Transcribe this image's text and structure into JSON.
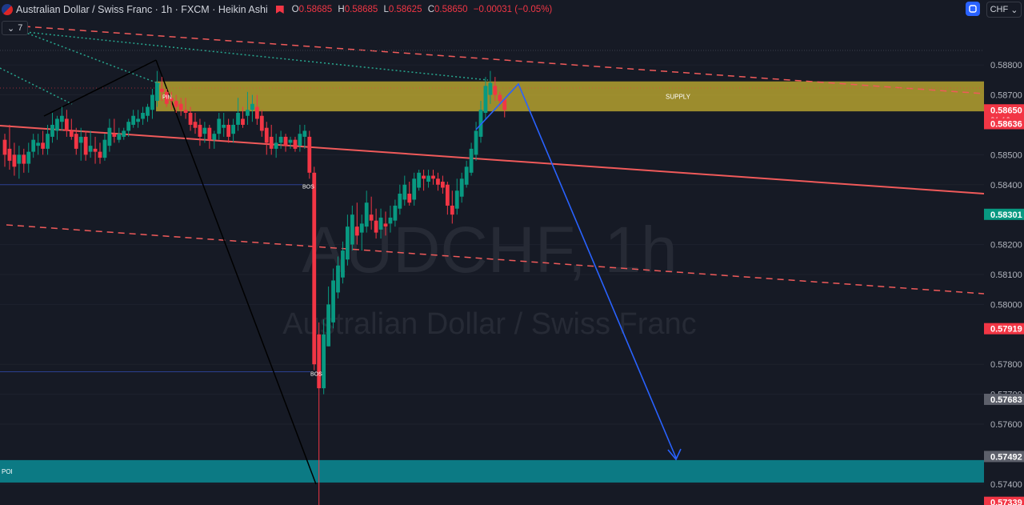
{
  "header": {
    "title": "Australian Dollar / Swiss Franc · 1h · FXCM · Heikin Ashi",
    "o_label": "O",
    "o": "0.58685",
    "h_label": "H",
    "h": "0.58685",
    "l_label": "L",
    "l": "0.58625",
    "c_label": "C",
    "c": "0.58650",
    "change": "−0.00031 (−0.05%)",
    "indicator_count": "7",
    "currency": "CHF"
  },
  "watermark": {
    "symbol": "AUDCHF, 1h",
    "name": "Australian Dollar / Swiss Franc"
  },
  "colors": {
    "up": "#089981",
    "down": "#f23645",
    "supply_zone": "#c9b330",
    "poi_zone": "#0a8c95",
    "projection": "#2962ff"
  },
  "chart_data": {
    "type": "candlestick",
    "symbol": "AUDCHF",
    "timeframe": "1h",
    "ylim": [
      0.5733,
      0.5891
    ],
    "y_ticks": [
      "0.58800",
      "0.58700",
      "0.58500",
      "0.58400",
      "0.58200",
      "0.58100",
      "0.58000",
      "0.57800",
      "0.57700",
      "0.57600",
      "0.57400"
    ],
    "price_labels": [
      {
        "value": "0.58650",
        "sub": "21:19",
        "color": "#f23645",
        "price": 0.5865
      },
      {
        "value": "0.58636",
        "color": "#f23645",
        "price": 0.58604
      },
      {
        "value": "0.58301",
        "color": "#089981",
        "price": 0.58301
      },
      {
        "value": "0.57919",
        "color": "#f23645",
        "price": 0.57919
      },
      {
        "value": "0.57683",
        "color": "#5d606b",
        "price": 0.57683
      },
      {
        "value": "0.57492",
        "color": "#5d606b",
        "price": 0.57492
      },
      {
        "value": "0.57339",
        "color": "#f23645",
        "price": 0.57339
      }
    ],
    "zones": [
      {
        "name": "SUPPLY",
        "top": 0.58745,
        "bottom": 0.58645
      },
      {
        "name": "POI",
        "top": 0.5748,
        "bottom": 0.57405
      }
    ],
    "labels": [
      {
        "text": "PIN",
        "x": 203,
        "price": 0.58695
      },
      {
        "text": "BOS",
        "x": 378,
        "price": 0.58395
      },
      {
        "text": "BOS",
        "x": 388,
        "price": 0.5777
      }
    ],
    "candles": [
      {
        "o": 0.5855,
        "h": 0.5857,
        "l": 0.5846,
        "c": 0.585
      },
      {
        "o": 0.5852,
        "h": 0.586,
        "l": 0.5845,
        "c": 0.5848
      },
      {
        "o": 0.585,
        "h": 0.5854,
        "l": 0.5843,
        "c": 0.5846
      },
      {
        "o": 0.5847,
        "h": 0.5853,
        "l": 0.5842,
        "c": 0.585
      },
      {
        "o": 0.585,
        "h": 0.5852,
        "l": 0.5844,
        "c": 0.5847
      },
      {
        "o": 0.5847,
        "h": 0.5854,
        "l": 0.5844,
        "c": 0.5851
      },
      {
        "o": 0.5851,
        "h": 0.5857,
        "l": 0.5849,
        "c": 0.5855
      },
      {
        "o": 0.5853,
        "h": 0.5857,
        "l": 0.585,
        "c": 0.5854
      },
      {
        "o": 0.5854,
        "h": 0.5858,
        "l": 0.585,
        "c": 0.5852
      },
      {
        "o": 0.5852,
        "h": 0.586,
        "l": 0.585,
        "c": 0.5857
      },
      {
        "o": 0.5856,
        "h": 0.5864,
        "l": 0.5854,
        "c": 0.586
      },
      {
        "o": 0.5858,
        "h": 0.5863,
        "l": 0.5855,
        "c": 0.5862
      },
      {
        "o": 0.5861,
        "h": 0.5866,
        "l": 0.5858,
        "c": 0.5863
      },
      {
        "o": 0.5862,
        "h": 0.5865,
        "l": 0.5856,
        "c": 0.5858
      },
      {
        "o": 0.5858,
        "h": 0.5862,
        "l": 0.5855,
        "c": 0.5856
      },
      {
        "o": 0.5857,
        "h": 0.5859,
        "l": 0.585,
        "c": 0.5852
      },
      {
        "o": 0.5854,
        "h": 0.5859,
        "l": 0.5848,
        "c": 0.5856
      },
      {
        "o": 0.5856,
        "h": 0.5858,
        "l": 0.5848,
        "c": 0.585
      },
      {
        "o": 0.5851,
        "h": 0.5858,
        "l": 0.5849,
        "c": 0.5853
      },
      {
        "o": 0.5852,
        "h": 0.5856,
        "l": 0.5847,
        "c": 0.5851
      },
      {
        "o": 0.5851,
        "h": 0.5854,
        "l": 0.5847,
        "c": 0.5849
      },
      {
        "o": 0.5849,
        "h": 0.5857,
        "l": 0.5848,
        "c": 0.5855
      },
      {
        "o": 0.5853,
        "h": 0.5862,
        "l": 0.5851,
        "c": 0.5859
      },
      {
        "o": 0.5857,
        "h": 0.5862,
        "l": 0.5854,
        "c": 0.5856
      },
      {
        "o": 0.5855,
        "h": 0.5859,
        "l": 0.5854,
        "c": 0.5857
      },
      {
        "o": 0.5856,
        "h": 0.5859,
        "l": 0.5855,
        "c": 0.5858
      },
      {
        "o": 0.5858,
        "h": 0.5862,
        "l": 0.5856,
        "c": 0.5861
      },
      {
        "o": 0.586,
        "h": 0.5865,
        "l": 0.5859,
        "c": 0.5863
      },
      {
        "o": 0.5861,
        "h": 0.5865,
        "l": 0.5859,
        "c": 0.5862
      },
      {
        "o": 0.5862,
        "h": 0.5866,
        "l": 0.586,
        "c": 0.5864
      },
      {
        "o": 0.5863,
        "h": 0.5867,
        "l": 0.5861,
        "c": 0.5866
      },
      {
        "o": 0.5865,
        "h": 0.5872,
        "l": 0.5862,
        "c": 0.587
      },
      {
        "o": 0.5868,
        "h": 0.5878,
        "l": 0.5866,
        "c": 0.5874
      },
      {
        "o": 0.5872,
        "h": 0.5876,
        "l": 0.5868,
        "c": 0.5871
      },
      {
        "o": 0.5871,
        "h": 0.5872,
        "l": 0.5866,
        "c": 0.5867
      },
      {
        "o": 0.5869,
        "h": 0.5871,
        "l": 0.5865,
        "c": 0.5868
      },
      {
        "o": 0.5868,
        "h": 0.587,
        "l": 0.5864,
        "c": 0.5866
      },
      {
        "o": 0.5867,
        "h": 0.5869,
        "l": 0.5863,
        "c": 0.5865
      },
      {
        "o": 0.5865,
        "h": 0.5869,
        "l": 0.5862,
        "c": 0.5864
      },
      {
        "o": 0.5864,
        "h": 0.5866,
        "l": 0.5858,
        "c": 0.586
      },
      {
        "o": 0.5861,
        "h": 0.5864,
        "l": 0.5857,
        "c": 0.5859
      },
      {
        "o": 0.586,
        "h": 0.5862,
        "l": 0.5853,
        "c": 0.5856
      },
      {
        "o": 0.5857,
        "h": 0.5861,
        "l": 0.5854,
        "c": 0.5859
      },
      {
        "o": 0.5859,
        "h": 0.586,
        "l": 0.5852,
        "c": 0.5855
      },
      {
        "o": 0.5855,
        "h": 0.5858,
        "l": 0.5852,
        "c": 0.5857
      },
      {
        "o": 0.5857,
        "h": 0.5864,
        "l": 0.5855,
        "c": 0.5862
      },
      {
        "o": 0.5859,
        "h": 0.5864,
        "l": 0.5856,
        "c": 0.586
      },
      {
        "o": 0.586,
        "h": 0.5862,
        "l": 0.5854,
        "c": 0.5856
      },
      {
        "o": 0.5857,
        "h": 0.5862,
        "l": 0.5854,
        "c": 0.586
      },
      {
        "o": 0.586,
        "h": 0.5869,
        "l": 0.5858,
        "c": 0.5864
      },
      {
        "o": 0.5862,
        "h": 0.5866,
        "l": 0.5859,
        "c": 0.586
      },
      {
        "o": 0.5863,
        "h": 0.5871,
        "l": 0.586,
        "c": 0.5865
      },
      {
        "o": 0.5865,
        "h": 0.587,
        "l": 0.5861,
        "c": 0.5867
      },
      {
        "o": 0.5866,
        "h": 0.587,
        "l": 0.586,
        "c": 0.5862
      },
      {
        "o": 0.5863,
        "h": 0.5865,
        "l": 0.5856,
        "c": 0.5858
      },
      {
        "o": 0.5859,
        "h": 0.5861,
        "l": 0.585,
        "c": 0.5854
      },
      {
        "o": 0.5856,
        "h": 0.586,
        "l": 0.585,
        "c": 0.5852
      },
      {
        "o": 0.5852,
        "h": 0.5857,
        "l": 0.5849,
        "c": 0.5854
      },
      {
        "o": 0.5854,
        "h": 0.5858,
        "l": 0.5852,
        "c": 0.5856
      },
      {
        "o": 0.5856,
        "h": 0.5857,
        "l": 0.5851,
        "c": 0.5853
      },
      {
        "o": 0.5854,
        "h": 0.5856,
        "l": 0.5852,
        "c": 0.5855
      },
      {
        "o": 0.5855,
        "h": 0.5856,
        "l": 0.5851,
        "c": 0.5852
      },
      {
        "o": 0.5853,
        "h": 0.586,
        "l": 0.5851,
        "c": 0.5857
      },
      {
        "o": 0.5856,
        "h": 0.586,
        "l": 0.5852,
        "c": 0.5858
      },
      {
        "o": 0.5856,
        "h": 0.5858,
        "l": 0.5842,
        "c": 0.5844
      },
      {
        "o": 0.5844,
        "h": 0.5846,
        "l": 0.5778,
        "c": 0.578
      },
      {
        "o": 0.579,
        "h": 0.5794,
        "l": 0.5733,
        "c": 0.5772
      },
      {
        "o": 0.5772,
        "h": 0.5795,
        "l": 0.577,
        "c": 0.579
      },
      {
        "o": 0.5786,
        "h": 0.5806,
        "l": 0.5786,
        "c": 0.58
      },
      {
        "o": 0.5794,
        "h": 0.5812,
        "l": 0.5792,
        "c": 0.5808
      },
      {
        "o": 0.5804,
        "h": 0.5816,
        "l": 0.5802,
        "c": 0.5813
      },
      {
        "o": 0.5809,
        "h": 0.5821,
        "l": 0.5807,
        "c": 0.5818
      },
      {
        "o": 0.5815,
        "h": 0.583,
        "l": 0.5813,
        "c": 0.5826
      },
      {
        "o": 0.582,
        "h": 0.5833,
        "l": 0.5818,
        "c": 0.583
      },
      {
        "o": 0.5826,
        "h": 0.5834,
        "l": 0.582,
        "c": 0.5823
      },
      {
        "o": 0.5824,
        "h": 0.583,
        "l": 0.5818,
        "c": 0.5827
      },
      {
        "o": 0.5826,
        "h": 0.5838,
        "l": 0.5824,
        "c": 0.5834
      },
      {
        "o": 0.583,
        "h": 0.5836,
        "l": 0.5825,
        "c": 0.5828
      },
      {
        "o": 0.5828,
        "h": 0.5832,
        "l": 0.5822,
        "c": 0.5824
      },
      {
        "o": 0.5825,
        "h": 0.5832,
        "l": 0.5822,
        "c": 0.5829
      },
      {
        "o": 0.5827,
        "h": 0.5831,
        "l": 0.5823,
        "c": 0.5826
      },
      {
        "o": 0.5827,
        "h": 0.5833,
        "l": 0.5824,
        "c": 0.5829
      },
      {
        "o": 0.5828,
        "h": 0.5835,
        "l": 0.5826,
        "c": 0.5833
      },
      {
        "o": 0.5832,
        "h": 0.584,
        "l": 0.583,
        "c": 0.5837
      },
      {
        "o": 0.5835,
        "h": 0.5843,
        "l": 0.5833,
        "c": 0.584
      },
      {
        "o": 0.5837,
        "h": 0.5841,
        "l": 0.5833,
        "c": 0.5834
      },
      {
        "o": 0.5835,
        "h": 0.5844,
        "l": 0.5833,
        "c": 0.5842
      },
      {
        "o": 0.5839,
        "h": 0.5845,
        "l": 0.5838,
        "c": 0.5844
      },
      {
        "o": 0.5843,
        "h": 0.5845,
        "l": 0.5838,
        "c": 0.5842
      },
      {
        "o": 0.5841,
        "h": 0.5845,
        "l": 0.5839,
        "c": 0.5843
      },
      {
        "o": 0.5843,
        "h": 0.5845,
        "l": 0.584,
        "c": 0.5842
      },
      {
        "o": 0.5842,
        "h": 0.5844,
        "l": 0.5838,
        "c": 0.584
      },
      {
        "o": 0.5841,
        "h": 0.5843,
        "l": 0.5837,
        "c": 0.5839
      },
      {
        "o": 0.584,
        "h": 0.5841,
        "l": 0.583,
        "c": 0.5833
      },
      {
        "o": 0.5833,
        "h": 0.5838,
        "l": 0.5827,
        "c": 0.583
      },
      {
        "o": 0.5832,
        "h": 0.5842,
        "l": 0.583,
        "c": 0.5838
      },
      {
        "o": 0.5836,
        "h": 0.5844,
        "l": 0.5834,
        "c": 0.5842
      },
      {
        "o": 0.584,
        "h": 0.5848,
        "l": 0.5839,
        "c": 0.5846
      },
      {
        "o": 0.5844,
        "h": 0.5854,
        "l": 0.5843,
        "c": 0.5852
      },
      {
        "o": 0.585,
        "h": 0.5861,
        "l": 0.5848,
        "c": 0.5858
      },
      {
        "o": 0.5856,
        "h": 0.5868,
        "l": 0.5854,
        "c": 0.5865
      },
      {
        "o": 0.5864,
        "h": 0.5876,
        "l": 0.5862,
        "c": 0.5873
      },
      {
        "o": 0.587,
        "h": 0.5878,
        "l": 0.5867,
        "c": 0.5874
      },
      {
        "o": 0.5873,
        "h": 0.5876,
        "l": 0.5868,
        "c": 0.587
      },
      {
        "o": 0.587,
        "h": 0.5871,
        "l": 0.5866,
        "c": 0.5868
      },
      {
        "o": 0.58685,
        "h": 0.58685,
        "l": 0.58625,
        "c": 0.5865
      }
    ]
  }
}
